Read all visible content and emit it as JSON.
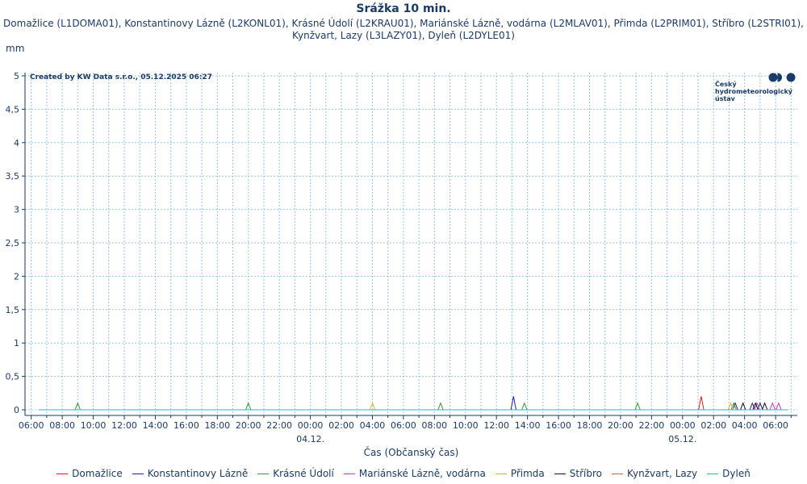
{
  "chart_data": {
    "type": "line",
    "title": "Srážka 10 min.",
    "subtitle": "Domažlice (L1DOMA01), Konstantinovy Lázně (L2KONL01), Krásné Údolí (L2KRAU01), Mariánské Lázně, vodárna (L2MLAV01), Přimda (L2PRIM01), Stříbro (L2STRI01), Kynžvart, Lazy (L3LAZY01), Dyleň (L2DYLE01)",
    "ylabel": "mm",
    "xlabel": "Čas (Občanský čas)",
    "credit": "Created by KW Data s.r.o., 05.12.2025 06:27",
    "logo_text": [
      "Český",
      "hydrometeorologický",
      "ústav"
    ],
    "ylim": [
      0,
      5
    ],
    "xlim_hours": [
      -0.4,
      49.4
    ],
    "y_ticks": [
      "0",
      "0,5",
      "1",
      "1,5",
      "2",
      "2,5",
      "3",
      "3,5",
      "4",
      "4,5",
      "5"
    ],
    "x_ticks": [
      "06:00",
      "08:00",
      "10:00",
      "12:00",
      "14:00",
      "16:00",
      "18:00",
      "20:00",
      "22:00",
      "00:00",
      "02:00",
      "04:00",
      "06:00",
      "08:00",
      "10:00",
      "12:00",
      "14:00",
      "16:00",
      "18:00",
      "20:00",
      "22:00",
      "00:00",
      "02:00",
      "04:00",
      "06:00"
    ],
    "date_labels": [
      {
        "label": "04.12.",
        "tick_index": 9
      },
      {
        "label": "05.12.",
        "tick_index": 21
      }
    ],
    "grid": true,
    "legend_position": "bottom",
    "series": [
      {
        "name": "Domažlice",
        "color": "#e41a1c",
        "peaks": [
          [
            43.2,
            0.2
          ]
        ]
      },
      {
        "name": "Konstantinovy Lázně",
        "color": "#1f1fa8",
        "peaks": [
          [
            31.1,
            0.2
          ],
          [
            45.4,
            0.1
          ],
          [
            46.5,
            0.1
          ],
          [
            47.0,
            0.1
          ]
        ]
      },
      {
        "name": "Krásné Údolí",
        "color": "#33a02c",
        "peaks": [
          [
            3.0,
            0.1
          ],
          [
            14.0,
            0.1
          ],
          [
            26.4,
            0.1
          ],
          [
            31.8,
            0.1
          ],
          [
            39.1,
            0.1
          ],
          [
            45.3,
            0.1
          ]
        ]
      },
      {
        "name": "Mariánské Lázně, vodárna",
        "color": "#cc33cc",
        "peaks": [
          [
            46.8,
            0.1
          ],
          [
            47.8,
            0.1
          ],
          [
            48.2,
            0.1
          ]
        ]
      },
      {
        "name": "Přimda",
        "color": "#f2b01e",
        "peaks": [
          [
            22.0,
            0.1
          ],
          [
            45.1,
            0.1
          ]
        ]
      },
      {
        "name": "Stříbro",
        "color": "#111111",
        "peaks": [
          [
            45.9,
            0.1
          ],
          [
            46.7,
            0.1
          ],
          [
            47.3,
            0.1
          ]
        ]
      },
      {
        "name": "Kynžvart, Lazy",
        "color": "#d2691e",
        "peaks": []
      },
      {
        "name": "Dyleň",
        "color": "#22b5e6",
        "peaks": []
      }
    ]
  }
}
